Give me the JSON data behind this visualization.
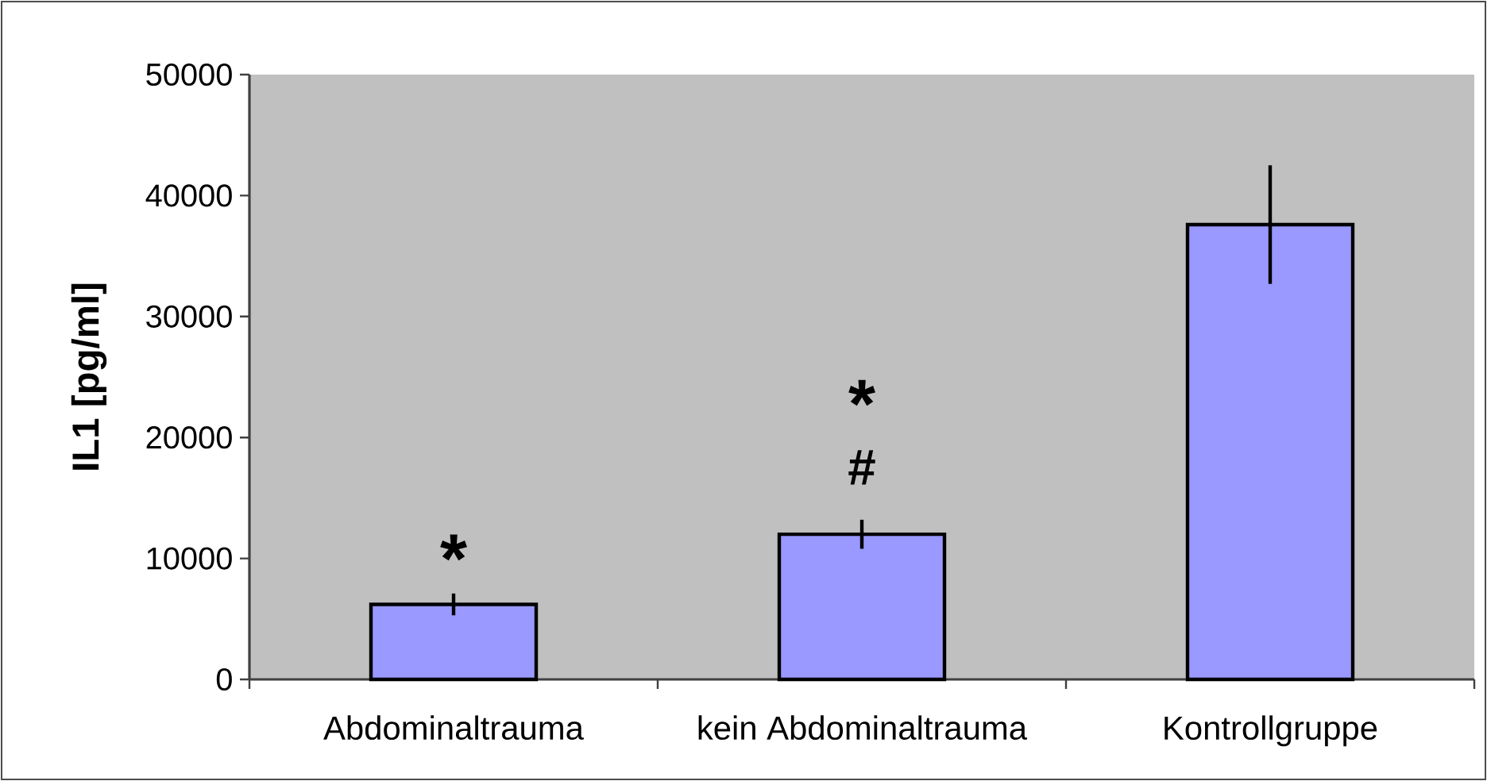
{
  "chart_data": {
    "type": "bar",
    "ylabel": "IL1 [pg/ml]",
    "categories": [
      "Abdominaltrauma",
      "kein Abdominaltrauma",
      "Kontrollgruppe"
    ],
    "values": [
      6200,
      12000,
      37600
    ],
    "errors": [
      900,
      1200,
      4900
    ],
    "color": "#9999ff",
    "ylim": [
      0,
      50000
    ],
    "yticks": [
      0,
      10000,
      20000,
      30000,
      40000,
      50000
    ],
    "annotations": [
      "*",
      "#",
      "*"
    ]
  }
}
